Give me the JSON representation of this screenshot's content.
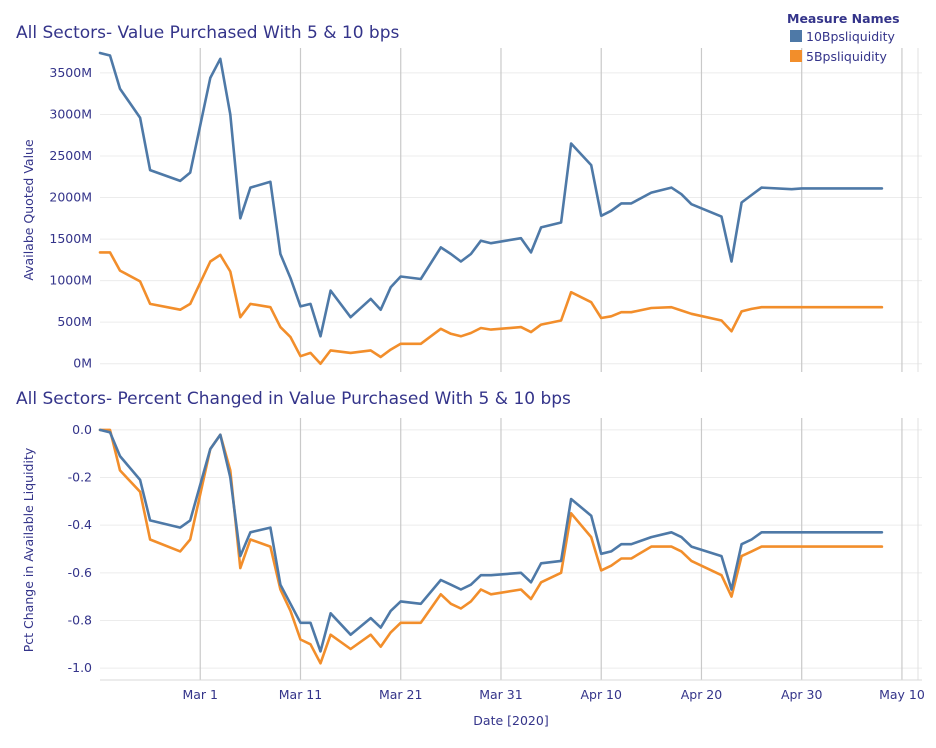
{
  "legend": {
    "title": "Measure Names",
    "items": [
      {
        "label": "10Bpsliquidity",
        "color": "#4e79a7"
      },
      {
        "label": "5Bpsliquidity",
        "color": "#f28e2b"
      }
    ]
  },
  "x_axis": {
    "title": "Date [2020]",
    "ticks": [
      "Mar 1",
      "Mar 11",
      "Mar 21",
      "Mar 31",
      "Apr 10",
      "Apr 20",
      "Apr 30",
      "May 10"
    ]
  },
  "chart_data": [
    {
      "type": "line",
      "title": "All Sectors- Value Purchased With 5 & 10 bps",
      "xlabel": "Date [2020]",
      "ylabel": "Availabe Quoted Value",
      "x_unit": "date",
      "xlim": [
        "2020-02-20",
        "2020-05-12"
      ],
      "ylim": [
        -100,
        3800
      ],
      "y_ticks": [
        {
          "value": 0,
          "label": "0M"
        },
        {
          "value": 500,
          "label": "500M"
        },
        {
          "value": 1000,
          "label": "1000M"
        },
        {
          "value": 1500,
          "label": "1500M"
        },
        {
          "value": 2000,
          "label": "2000M"
        },
        {
          "value": 2500,
          "label": "2500M"
        },
        {
          "value": 3000,
          "label": "3000M"
        },
        {
          "value": 3500,
          "label": "3500M"
        }
      ],
      "grid": true,
      "x": [
        "2020-02-20",
        "2020-02-21",
        "2020-02-22",
        "2020-02-24",
        "2020-02-25",
        "2020-02-28",
        "2020-02-29",
        "2020-03-02",
        "2020-03-03",
        "2020-03-04",
        "2020-03-05",
        "2020-03-06",
        "2020-03-08",
        "2020-03-09",
        "2020-03-10",
        "2020-03-11",
        "2020-03-12",
        "2020-03-13",
        "2020-03-14",
        "2020-03-16",
        "2020-03-18",
        "2020-03-19",
        "2020-03-20",
        "2020-03-21",
        "2020-03-23",
        "2020-03-25",
        "2020-03-26",
        "2020-03-27",
        "2020-03-28",
        "2020-03-29",
        "2020-03-30",
        "2020-04-02",
        "2020-04-03",
        "2020-04-04",
        "2020-04-06",
        "2020-04-07",
        "2020-04-09",
        "2020-04-10",
        "2020-04-11",
        "2020-04-12",
        "2020-04-13",
        "2020-04-15",
        "2020-04-17",
        "2020-04-18",
        "2020-04-19",
        "2020-04-22",
        "2020-04-23",
        "2020-04-24",
        "2020-04-25",
        "2020-04-26",
        "2020-04-29",
        "2020-04-30",
        "2020-05-01",
        "2020-05-02",
        "2020-05-05",
        "2020-05-06",
        "2020-05-07",
        "2020-05-08"
      ],
      "series": [
        {
          "name": "10Bpsliquidity",
          "color": "#4e79a7",
          "values": [
            3740,
            3710,
            3310,
            2960,
            2330,
            2200,
            2300,
            3440,
            3670,
            3000,
            1750,
            2120,
            2190,
            1320,
            1030,
            690,
            720,
            330,
            880,
            560,
            780,
            650,
            920,
            1050,
            1020,
            1400,
            1320,
            1230,
            1320,
            1480,
            1450,
            1510,
            1340,
            1640,
            1700,
            2650,
            2390,
            1780,
            1840,
            1930,
            1930,
            2060,
            2120,
            2040,
            1920,
            1770,
            1230,
            1940,
            2030,
            2120,
            2100,
            2110,
            2110,
            2110,
            2110,
            2110,
            2110,
            2110
          ]
        },
        {
          "name": "5Bpsliquidity",
          "color": "#f28e2b",
          "values": [
            1340,
            1340,
            1120,
            990,
            720,
            650,
            720,
            1230,
            1310,
            1110,
            560,
            720,
            680,
            440,
            320,
            90,
            130,
            0,
            160,
            130,
            160,
            80,
            170,
            240,
            240,
            420,
            360,
            330,
            370,
            430,
            410,
            440,
            380,
            470,
            520,
            860,
            740,
            550,
            570,
            620,
            620,
            670,
            680,
            640,
            600,
            520,
            390,
            630,
            660,
            680,
            680,
            680,
            680,
            680,
            680,
            680,
            680,
            680
          ]
        }
      ]
    },
    {
      "type": "line",
      "title": "All Sectors- Percent Changed in Value Purchased With 5 & 10 bps",
      "xlabel": "Date [2020]",
      "ylabel": "Pct Change in Available Liquidity",
      "x_unit": "date",
      "xlim": [
        "2020-02-20",
        "2020-05-12"
      ],
      "ylim": [
        -1.05,
        0.05
      ],
      "y_ticks": [
        {
          "value": 0,
          "label": "0.0"
        },
        {
          "value": -0.2,
          "label": "-0.2"
        },
        {
          "value": -0.4,
          "label": "-0.4"
        },
        {
          "value": -0.6,
          "label": "-0.6"
        },
        {
          "value": -0.8,
          "label": "-0.8"
        },
        {
          "value": -1.0,
          "label": "-1.0"
        }
      ],
      "grid": true,
      "series": [
        {
          "name": "10Bpsliquidity",
          "color": "#4e79a7",
          "values": [
            0.0,
            -0.01,
            -0.11,
            -0.21,
            -0.38,
            -0.41,
            -0.38,
            -0.08,
            -0.02,
            -0.2,
            -0.53,
            -0.43,
            -0.41,
            -0.65,
            -0.73,
            -0.81,
            -0.81,
            -0.93,
            -0.77,
            -0.86,
            -0.79,
            -0.83,
            -0.76,
            -0.72,
            -0.73,
            -0.63,
            -0.65,
            -0.67,
            -0.65,
            -0.61,
            -0.61,
            -0.6,
            -0.64,
            -0.56,
            -0.55,
            -0.29,
            -0.36,
            -0.52,
            -0.51,
            -0.48,
            -0.48,
            -0.45,
            -0.43,
            -0.45,
            -0.49,
            -0.53,
            -0.67,
            -0.48,
            -0.46,
            -0.43,
            -0.43,
            -0.43,
            -0.43,
            -0.43,
            -0.43,
            -0.43,
            -0.43,
            -0.43
          ]
        },
        {
          "name": "5Bpsliquidity",
          "color": "#f28e2b",
          "values": [
            0.0,
            0.0,
            -0.17,
            -0.26,
            -0.46,
            -0.51,
            -0.46,
            -0.08,
            -0.02,
            -0.17,
            -0.58,
            -0.46,
            -0.49,
            -0.67,
            -0.76,
            -0.88,
            -0.9,
            -0.98,
            -0.86,
            -0.92,
            -0.86,
            -0.91,
            -0.85,
            -0.81,
            -0.81,
            -0.69,
            -0.73,
            -0.75,
            -0.72,
            -0.67,
            -0.69,
            -0.67,
            -0.71,
            -0.64,
            -0.6,
            -0.35,
            -0.45,
            -0.59,
            -0.57,
            -0.54,
            -0.54,
            -0.49,
            -0.49,
            -0.51,
            -0.55,
            -0.61,
            -0.7,
            -0.53,
            -0.51,
            -0.49,
            -0.49,
            -0.49,
            -0.49,
            -0.49,
            -0.49,
            -0.49,
            -0.49,
            -0.49
          ]
        }
      ]
    }
  ]
}
